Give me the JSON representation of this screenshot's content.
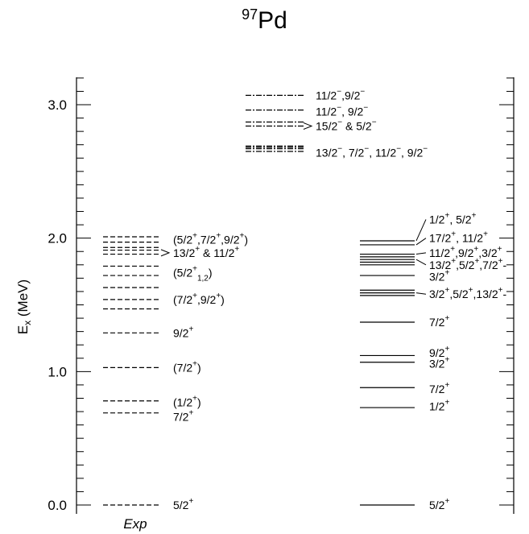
{
  "chart_data": {
    "type": "level-scheme",
    "title": {
      "mass": "97",
      "element": "Pd"
    },
    "ylabel_main": "E",
    "ylabel_sub": "x",
    "ylabel_unit": " (MeV)",
    "ylim": [
      0.0,
      3.2
    ],
    "yticks": [
      0.0,
      1.0,
      2.0,
      3.0
    ],
    "ytick_labels": [
      "0.0",
      "1.0",
      "2.0",
      "3.0"
    ],
    "minor_tick_step": 0.1,
    "xlabel": "Exp",
    "columns": [
      {
        "id": "exp",
        "line_style": "dashed",
        "levels": [
          {
            "e": 0.0
          },
          {
            "e": 0.69
          },
          {
            "e": 0.78
          },
          {
            "e": 1.03
          },
          {
            "e": 1.29
          },
          {
            "e": 1.47
          },
          {
            "e": 1.54
          },
          {
            "e": 1.63
          },
          {
            "e": 1.72
          },
          {
            "e": 1.79
          },
          {
            "e": 1.88
          },
          {
            "e": 1.91
          },
          {
            "e": 1.93
          },
          {
            "e": 1.97
          },
          {
            "e": 2.01
          }
        ],
        "labels": [
          {
            "e": 0.0,
            "spans": [
              [
                "5/2",
                ""
              ],
              [
                "+",
                "sup"
              ]
            ]
          },
          {
            "e": 0.66,
            "spans": [
              [
                "7/2",
                ""
              ],
              [
                "+",
                "sup"
              ]
            ]
          },
          {
            "e": 0.77,
            "spans": [
              [
                "(1/2",
                ""
              ],
              [
                "+",
                "sup"
              ],
              [
                ")",
                ""
              ]
            ]
          },
          {
            "e": 1.03,
            "spans": [
              [
                "(7/2",
                ""
              ],
              [
                "+",
                "sup"
              ],
              [
                ")",
                ""
              ]
            ]
          },
          {
            "e": 1.29,
            "spans": [
              [
                "9/2",
                ""
              ],
              [
                "+",
                "sup"
              ]
            ]
          },
          {
            "e": 1.54,
            "spans": [
              [
                "(7/2",
                ""
              ],
              [
                "+",
                "sup"
              ],
              [
                ",9/2",
                ""
              ],
              [
                "+",
                "sup"
              ],
              [
                ")",
                ""
              ]
            ]
          },
          {
            "e": 1.74,
            "spans": [
              [
                "(5/2",
                ""
              ],
              [
                "+",
                "sup"
              ],
              [
                "1,2",
                "sub"
              ],
              [
                ")",
                ""
              ]
            ]
          },
          {
            "e": 1.89,
            "spans": [
              [
                "13/2",
                ""
              ],
              [
                "+",
                "sup"
              ],
              [
                " & 11/2",
                ""
              ],
              [
                "+",
                "sup"
              ]
            ]
          },
          {
            "e": 1.99,
            "spans": [
              [
                "(5/2",
                ""
              ],
              [
                "+",
                "sup"
              ],
              [
                ",7/2",
                ""
              ],
              [
                "+",
                "sup"
              ],
              [
                ",9/2",
                ""
              ],
              [
                "+",
                "sup"
              ],
              [
                ")",
                ""
              ]
            ]
          }
        ]
      },
      {
        "id": "negative-parity",
        "line_style": "dashdot",
        "levels": [
          {
            "e": 2.65
          },
          {
            "e": 2.67
          },
          {
            "e": 2.68
          },
          {
            "e": 2.69
          },
          {
            "e": 2.84
          },
          {
            "e": 2.87
          },
          {
            "e": 2.96
          },
          {
            "e": 3.07
          }
        ],
        "labels": [
          {
            "e": 2.64,
            "spans": [
              [
                "13/2",
                ""
              ],
              [
                "−",
                "sup"
              ],
              [
                ", 7/2",
                ""
              ],
              [
                "−",
                "sup"
              ],
              [
                ", 11/2",
                ""
              ],
              [
                "−",
                "sup"
              ],
              [
                ", 9/2",
                ""
              ],
              [
                "−",
                "sup"
              ]
            ]
          },
          {
            "e": 2.84,
            "spans": [
              [
                "15/2",
                ""
              ],
              [
                "−",
                "sup"
              ],
              [
                " & 5/2",
                ""
              ],
              [
                "−",
                "sup"
              ]
            ]
          },
          {
            "e": 2.95,
            "spans": [
              [
                "11/2",
                ""
              ],
              [
                "−",
                "sup"
              ],
              [
                ", 9/2",
                ""
              ],
              [
                "−",
                "sup"
              ]
            ]
          },
          {
            "e": 3.07,
            "spans": [
              [
                "11/2",
                ""
              ],
              [
                "−",
                "sup"
              ],
              [
                ",9/2",
                ""
              ],
              [
                "−",
                "sup"
              ]
            ]
          }
        ]
      },
      {
        "id": "positive-parity",
        "line_style": "solid",
        "levels": [
          {
            "e": 0.0
          },
          {
            "e": 0.73
          },
          {
            "e": 0.88
          },
          {
            "e": 1.07
          },
          {
            "e": 1.12
          },
          {
            "e": 1.37
          },
          {
            "e": 1.57
          },
          {
            "e": 1.59
          },
          {
            "e": 1.61
          },
          {
            "e": 1.72
          },
          {
            "e": 1.8
          },
          {
            "e": 1.82
          },
          {
            "e": 1.84
          },
          {
            "e": 1.86
          },
          {
            "e": 1.88
          },
          {
            "e": 1.95
          },
          {
            "e": 1.98
          }
        ],
        "labels": [
          {
            "e": 0.0,
            "spans": [
              [
                "5/2",
                ""
              ],
              [
                "+",
                "sup"
              ]
            ]
          },
          {
            "e": 0.74,
            "spans": [
              [
                "1/2",
                ""
              ],
              [
                "+",
                "sup"
              ]
            ]
          },
          {
            "e": 0.87,
            "spans": [
              [
                "7/2",
                ""
              ],
              [
                "+",
                "sup"
              ]
            ]
          },
          {
            "e": 1.06,
            "spans": [
              [
                "3/2",
                ""
              ],
              [
                "+",
                "sup"
              ]
            ]
          },
          {
            "e": 1.14,
            "spans": [
              [
                "9/2",
                ""
              ],
              [
                "+",
                "sup"
              ]
            ]
          },
          {
            "e": 1.37,
            "spans": [
              [
                "7/2",
                ""
              ],
              [
                "+",
                "sup"
              ]
            ]
          },
          {
            "e": 1.58,
            "spans": [
              [
                "3/2",
                ""
              ],
              [
                "+",
                "sup"
              ],
              [
                ",5/2",
                ""
              ],
              [
                "+",
                "sup"
              ],
              [
                ",13/2",
                ""
              ],
              [
                "+",
                "sup"
              ],
              [
                "-",
                ""
              ]
            ]
          },
          {
            "e": 1.71,
            "spans": [
              [
                "3/2",
                ""
              ],
              [
                "+",
                "sup"
              ]
            ]
          },
          {
            "e": 1.8,
            "spans": [
              [
                "13/2",
                ""
              ],
              [
                "+",
                "sup"
              ],
              [
                ",5/2",
                ""
              ],
              [
                "+",
                "sup"
              ],
              [
                ",7/2",
                ""
              ],
              [
                "+",
                "sup"
              ],
              [
                "-",
                ""
              ]
            ]
          },
          {
            "e": 1.89,
            "spans": [
              [
                "11/2",
                ""
              ],
              [
                "+",
                "sup"
              ],
              [
                ",9/2",
                ""
              ],
              [
                "+",
                "sup"
              ],
              [
                ",3/2",
                ""
              ],
              [
                "+",
                "sup"
              ]
            ]
          },
          {
            "e": 2.0,
            "spans": [
              [
                "17/2",
                ""
              ],
              [
                "+",
                "sup"
              ],
              [
                ", 11/2",
                ""
              ],
              [
                "+",
                "sup"
              ]
            ]
          },
          {
            "e": 2.14,
            "spans": [
              [
                "1/2",
                ""
              ],
              [
                "+",
                "sup"
              ],
              [
                ", 5/2",
                ""
              ],
              [
                "+",
                "sup"
              ]
            ]
          }
        ]
      }
    ]
  }
}
